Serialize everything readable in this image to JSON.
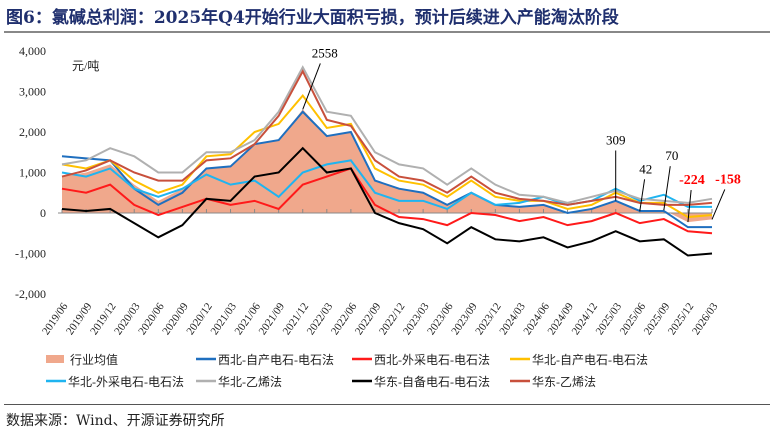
{
  "title": "图6：氯碱总利润：2025年Q4开始行业大面积亏损，预计后续进入产能淘汰阶段",
  "source": "数据来源：Wind、开源证券研究所",
  "chart_data": {
    "type": "line",
    "ylabel": "元/吨",
    "ylim": [
      -2000,
      4000
    ],
    "yticks": [
      -2000,
      -1000,
      0,
      1000,
      2000,
      3000,
      4000
    ],
    "ytick_labels": [
      "-2,000",
      "-1,000",
      "0",
      "1,000",
      "2,000",
      "3,000",
      "4,000"
    ],
    "grid": false,
    "legend_position": "bottom",
    "categories": [
      "2019/06",
      "2019/09",
      "2019/12",
      "2020/03",
      "2020/06",
      "2020/09",
      "2020/12",
      "2021/03",
      "2021/06",
      "2021/09",
      "2021/12",
      "2022/03",
      "2022/06",
      "2022/09",
      "2022/12",
      "2023/03",
      "2023/06",
      "2023/09",
      "2023/12",
      "2024/03",
      "2024/06",
      "2024/09",
      "2024/12",
      "2025/03",
      "2025/06",
      "2025/09",
      "2025/12",
      "2026/03"
    ],
    "area": {
      "name": "行业均值",
      "color": "#f0a88c",
      "values": [
        900,
        1000,
        1200,
        700,
        300,
        600,
        1100,
        1150,
        1700,
        1800,
        2558,
        1900,
        2000,
        800,
        600,
        500,
        200,
        500,
        200,
        150,
        200,
        0,
        100,
        309,
        42,
        70,
        -224,
        -158
      ]
    },
    "series": [
      {
        "name": "西北-自产电石-电石法",
        "color": "#1f6fbf",
        "values": [
          1400,
          1350,
          1300,
          600,
          200,
          500,
          1100,
          1150,
          1700,
          1800,
          2500,
          1900,
          2000,
          800,
          600,
          500,
          200,
          500,
          200,
          150,
          200,
          0,
          100,
          300,
          50,
          50,
          -350,
          -350
        ]
      },
      {
        "name": "西北-外采电石-电石法",
        "color": "#ff1a1a",
        "values": [
          600,
          500,
          700,
          200,
          -50,
          150,
          350,
          200,
          300,
          100,
          700,
          900,
          1100,
          200,
          -100,
          -150,
          -300,
          0,
          -50,
          -200,
          -100,
          -300,
          -200,
          0,
          -250,
          -150,
          -450,
          -500
        ]
      },
      {
        "name": "华北-自产电石-电石法",
        "color": "#ffc000",
        "values": [
          1200,
          1100,
          1300,
          800,
          500,
          700,
          1400,
          1450,
          2000,
          2200,
          2900,
          2100,
          2200,
          1100,
          800,
          700,
          400,
          800,
          400,
          300,
          300,
          100,
          200,
          500,
          250,
          250,
          -100,
          -50
        ]
      },
      {
        "name": "华北-外采电石-电石法",
        "color": "#1fb4f0",
        "values": [
          1000,
          900,
          1100,
          600,
          400,
          600,
          950,
          700,
          800,
          400,
          1000,
          1200,
          1300,
          500,
          300,
          300,
          100,
          500,
          200,
          250,
          400,
          200,
          300,
          600,
          300,
          450,
          150,
          150
        ]
      },
      {
        "name": "华北-乙烯法",
        "color": "#b0b0b0",
        "values": [
          1200,
          1300,
          1600,
          1400,
          1000,
          1000,
          1500,
          1500,
          1800,
          2500,
          3600,
          2500,
          2400,
          1500,
          1200,
          1100,
          700,
          1100,
          700,
          450,
          400,
          250,
          400,
          550,
          350,
          300,
          250,
          350
        ]
      },
      {
        "name": "华东-自备电石-电石法",
        "color": "#000000",
        "values": [
          100,
          50,
          100,
          -250,
          -600,
          -300,
          350,
          300,
          900,
          1000,
          1600,
          1000,
          1100,
          0,
          -250,
          -400,
          -750,
          -350,
          -650,
          -700,
          -600,
          -850,
          -700,
          -450,
          -700,
          -650,
          -1050,
          -1000
        ]
      },
      {
        "name": "华东-乙烯法",
        "color": "#c8503c",
        "values": [
          900,
          1050,
          1300,
          1000,
          800,
          800,
          1300,
          1350,
          1700,
          2400,
          3500,
          2300,
          2150,
          1300,
          900,
          800,
          500,
          900,
          500,
          350,
          300,
          200,
          300,
          400,
          250,
          200,
          200,
          250
        ]
      }
    ],
    "annotations": [
      {
        "text": "2558",
        "category": "2021/12",
        "color": "#000000"
      },
      {
        "text": "309",
        "category": "2025/03",
        "color": "#000000"
      },
      {
        "text": "42",
        "category": "2025/06",
        "color": "#000000"
      },
      {
        "text": "70",
        "category": "2025/09",
        "color": "#000000"
      },
      {
        "text": "-224",
        "category": "2025/12",
        "color": "#ff0000"
      },
      {
        "text": "-158",
        "category": "2026/03",
        "color": "#ff0000"
      }
    ]
  }
}
